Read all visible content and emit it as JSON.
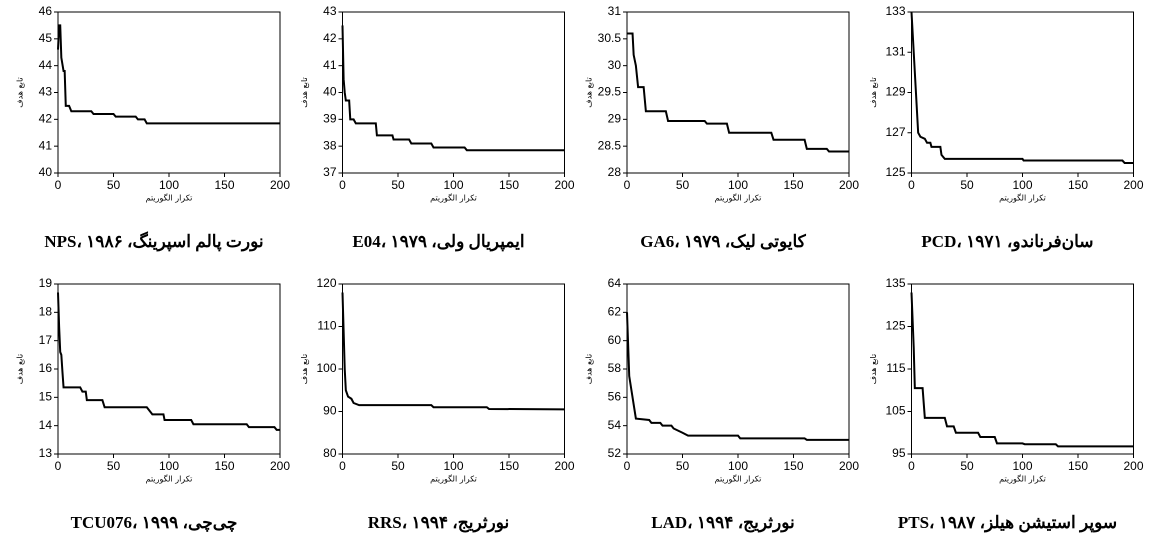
{
  "chart_data": [
    {
      "type": "line",
      "title": "نورت پالم اسپرینگ، NPS، ۱۹۸۶",
      "x_label": "تکرار الگوریتم",
      "y_label": "تابع هدف",
      "color": "#000000",
      "x": [
        0,
        1,
        2,
        3,
        5,
        6,
        7,
        10,
        12,
        30,
        32,
        50,
        52,
        70,
        72,
        78,
        80,
        200
      ],
      "values": [
        44.6,
        45.5,
        45.5,
        44.3,
        43.8,
        43.8,
        42.5,
        42.5,
        42.3,
        42.3,
        42.2,
        42.2,
        42.1,
        42.1,
        42,
        42,
        41.85,
        41.85
      ],
      "xlim": [
        0,
        200
      ],
      "xticks": [
        0,
        50,
        100,
        150,
        200
      ],
      "ylim": [
        40,
        46
      ],
      "yticks": [
        40,
        41,
        42,
        43,
        44,
        45,
        46
      ]
    },
    {
      "type": "line",
      "title": "ایمپریال ولی، E04، ۱۹۷۹",
      "x_label": "تکرار الگوریتم",
      "y_label": "تابع هدف",
      "color": "#000000",
      "x": [
        0,
        1,
        2,
        3,
        6,
        7,
        10,
        12,
        30,
        31,
        45,
        46,
        60,
        62,
        80,
        82,
        110,
        112,
        200
      ],
      "values": [
        42.5,
        40.5,
        40,
        39.7,
        39.7,
        39,
        39,
        38.85,
        38.85,
        38.4,
        38.4,
        38.25,
        38.25,
        38.1,
        38.1,
        37.95,
        37.95,
        37.85,
        37.85
      ],
      "xlim": [
        0,
        200
      ],
      "xticks": [
        0,
        50,
        100,
        150,
        200
      ],
      "ylim": [
        37,
        43
      ],
      "yticks": [
        37,
        38,
        39,
        40,
        41,
        42,
        43
      ]
    },
    {
      "type": "line",
      "title": "کایوتی لیک، GA6، ۱۹۷۹",
      "x_label": "تکرار الگوریتم",
      "y_label": "تابع هدف",
      "color": "#000000",
      "x": [
        0,
        5,
        6,
        8,
        10,
        15,
        17,
        35,
        37,
        70,
        72,
        90,
        92,
        130,
        132,
        160,
        162,
        180,
        182,
        200
      ],
      "values": [
        30.6,
        30.6,
        30.2,
        30,
        29.6,
        29.6,
        29.15,
        29.15,
        28.97,
        28.97,
        28.92,
        28.92,
        28.75,
        28.75,
        28.62,
        28.62,
        28.45,
        28.45,
        28.4,
        28.4
      ],
      "xlim": [
        0,
        200
      ],
      "xticks": [
        0,
        50,
        100,
        150,
        200
      ],
      "ylim": [
        28,
        31
      ],
      "yticks": [
        28,
        28.5,
        29,
        29.5,
        30,
        30.5,
        31
      ]
    },
    {
      "type": "line",
      "title": "سان‌فرناندو، PCD، ۱۹۷۱",
      "x_label": "تکرار الگوریتم",
      "y_label": "تابع هدف",
      "color": "#000000",
      "x": [
        0,
        2,
        4,
        6,
        8,
        12,
        14,
        17,
        18,
        26,
        27,
        30,
        100,
        101,
        190,
        192,
        200
      ],
      "values": [
        133,
        131,
        129,
        127,
        126.8,
        126.7,
        126.5,
        126.5,
        126.3,
        126.3,
        125.9,
        125.7,
        125.7,
        125.62,
        125.62,
        125.5,
        125.5
      ],
      "xlim": [
        0,
        200
      ],
      "xticks": [
        0,
        50,
        100,
        150,
        200
      ],
      "ylim": [
        125,
        133
      ],
      "yticks": [
        125,
        127,
        129,
        131,
        133
      ]
    },
    {
      "type": "line",
      "title": "چی‌چی، TCU076، ۱۹۹۹",
      "x_label": "تکرار الگوریتم",
      "y_label": "تابع هدف",
      "color": "#000000",
      "x": [
        0,
        1,
        2,
        3,
        4,
        5,
        20,
        22,
        25,
        26,
        40,
        42,
        80,
        85,
        95,
        96,
        120,
        122,
        170,
        172,
        195,
        197,
        200
      ],
      "values": [
        18.7,
        17.5,
        16.6,
        16.5,
        15.9,
        15.35,
        15.35,
        15.2,
        15.2,
        14.9,
        14.9,
        14.65,
        14.65,
        14.4,
        14.4,
        14.2,
        14.2,
        14.05,
        14.05,
        13.95,
        13.95,
        13.85,
        13.85
      ],
      "xlim": [
        0,
        200
      ],
      "xticks": [
        0,
        50,
        100,
        150,
        200
      ],
      "ylim": [
        13,
        19
      ],
      "yticks": [
        13,
        14,
        15,
        16,
        17,
        18,
        19
      ]
    },
    {
      "type": "line",
      "title": "نورثریج، RRS، ۱۹۹۴",
      "x_label": "تکرار الگوریتم",
      "y_label": "تابع هدف",
      "color": "#000000",
      "x": [
        0,
        2,
        3,
        5,
        8,
        10,
        15,
        80,
        82,
        130,
        132,
        200
      ],
      "values": [
        118,
        100,
        95,
        93.5,
        93,
        92,
        91.5,
        91.5,
        91,
        91,
        90.6,
        90.5
      ],
      "xlim": [
        0,
        200
      ],
      "xticks": [
        0,
        50,
        100,
        150,
        200
      ],
      "ylim": [
        80,
        120
      ],
      "yticks": [
        80,
        90,
        100,
        110,
        120
      ]
    },
    {
      "type": "line",
      "title": "نورثریج، LAD، ۱۹۹۴",
      "x_label": "تکرار الگوریتم",
      "y_label": "تابع هدف",
      "color": "#000000",
      "x": [
        0,
        2,
        4,
        6,
        8,
        20,
        22,
        30,
        32,
        40,
        42,
        50,
        55,
        100,
        102,
        160,
        162,
        200
      ],
      "values": [
        62,
        57.5,
        56.5,
        55.5,
        54.5,
        54.4,
        54.2,
        54.2,
        54,
        54,
        53.8,
        53.5,
        53.3,
        53.3,
        53.1,
        53.1,
        53,
        53
      ],
      "xlim": [
        0,
        200
      ],
      "xticks": [
        0,
        50,
        100,
        150,
        200
      ],
      "ylim": [
        52,
        64
      ],
      "yticks": [
        52,
        54,
        56,
        58,
        60,
        62,
        64
      ]
    },
    {
      "type": "line",
      "title": "سوپر استیشن هیلز، PTS، ۱۹۸۷",
      "x_label": "تکرار الگوریتم",
      "y_label": "تابع هدف",
      "color": "#000000",
      "x": [
        0,
        2,
        3,
        10,
        12,
        30,
        32,
        38,
        40,
        60,
        62,
        75,
        77,
        100,
        102,
        130,
        132,
        200
      ],
      "values": [
        133,
        120,
        110.5,
        110.5,
        103.5,
        103.5,
        101.5,
        101.5,
        100,
        100,
        99,
        99,
        97.5,
        97.5,
        97.3,
        97.3,
        96.8,
        96.8
      ],
      "xlim": [
        0,
        200
      ],
      "xticks": [
        0,
        50,
        100,
        150,
        200
      ],
      "ylim": [
        95,
        135
      ],
      "yticks": [
        95,
        105,
        115,
        125,
        135
      ]
    }
  ]
}
